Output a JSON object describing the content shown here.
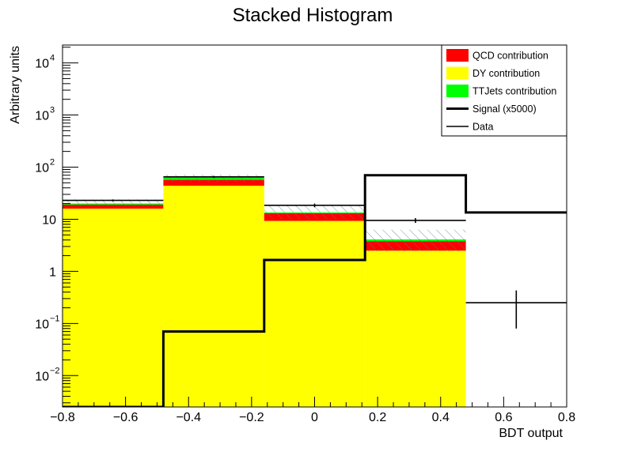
{
  "chart_data": {
    "type": "bar",
    "title": "Stacked Histogram",
    "xlabel": "BDT output",
    "ylabel": "Arbitrary units",
    "log_y": true,
    "xlim": [
      -0.8,
      0.8
    ],
    "ylim": [
      0.0025,
      22000
    ],
    "bin_edges": [
      -0.8,
      -0.48,
      -0.16,
      0.16,
      0.48,
      0.8
    ],
    "x_ticks": [
      {
        "v": -0.8,
        "label": "−0.8"
      },
      {
        "v": -0.6,
        "label": "−0.6"
      },
      {
        "v": -0.4,
        "label": "−0.4"
      },
      {
        "v": -0.2,
        "label": "−0.2"
      },
      {
        "v": 0,
        "label": "0"
      },
      {
        "v": 0.2,
        "label": "0.2"
      },
      {
        "v": 0.4,
        "label": "0.4"
      },
      {
        "v": 0.6,
        "label": "0.6"
      },
      {
        "v": 0.8,
        "label": "0.8"
      }
    ],
    "y_ticks": [
      {
        "v": 0.01,
        "base": "10",
        "exp": "−2"
      },
      {
        "v": 0.1,
        "base": "10",
        "exp": "−1"
      },
      {
        "v": 1,
        "base": "1",
        "exp": ""
      },
      {
        "v": 10,
        "base": "10",
        "exp": ""
      },
      {
        "v": 100,
        "base": "10",
        "exp": "2"
      },
      {
        "v": 1000,
        "base": "10",
        "exp": "3"
      },
      {
        "v": 10000,
        "base": "10",
        "exp": "4"
      }
    ],
    "stack": [
      {
        "name": "DY contribution",
        "color": "#ffff00",
        "values": [
          16,
          44,
          9.3,
          2.5,
          0
        ]
      },
      {
        "name": "QCD contribution",
        "color": "#ff0000",
        "values": [
          3,
          13,
          3.7,
          1.3,
          0
        ]
      },
      {
        "name": "TTJets contribution",
        "color": "#00ff00",
        "values": [
          1,
          7,
          0.5,
          0.3,
          0
        ]
      }
    ],
    "uncertainty_band": {
      "hatch_color": "#5a7a8a",
      "low": [
        18,
        52,
        10,
        2.4,
        0
      ],
      "high": [
        24,
        72,
        18,
        6.3,
        0
      ]
    },
    "signal": {
      "name": "Signal (x5000)",
      "color": "#000000",
      "values": [
        0.0025,
        0.07,
        1.65,
        70,
        13.5
      ]
    },
    "data": {
      "name": "Data",
      "color": "#000000",
      "values": [
        23,
        65,
        18.5,
        9.5,
        0.25
      ],
      "err_low": [
        1,
        3,
        1.5,
        1,
        0.17
      ],
      "err_high": [
        1,
        3,
        1.5,
        1,
        0.18
      ]
    },
    "legend": {
      "placement": "top-right",
      "entries": [
        {
          "label": "QCD contribution",
          "kind": "fill",
          "color": "#ff0000"
        },
        {
          "label": "DY contribution",
          "kind": "fill",
          "color": "#ffff00"
        },
        {
          "label": "TTJets contribution",
          "kind": "fill",
          "color": "#00ff00"
        },
        {
          "label": "Signal (x5000)",
          "kind": "thick-line",
          "color": "#000000"
        },
        {
          "label": "Data",
          "kind": "line",
          "color": "#000000"
        }
      ]
    }
  }
}
